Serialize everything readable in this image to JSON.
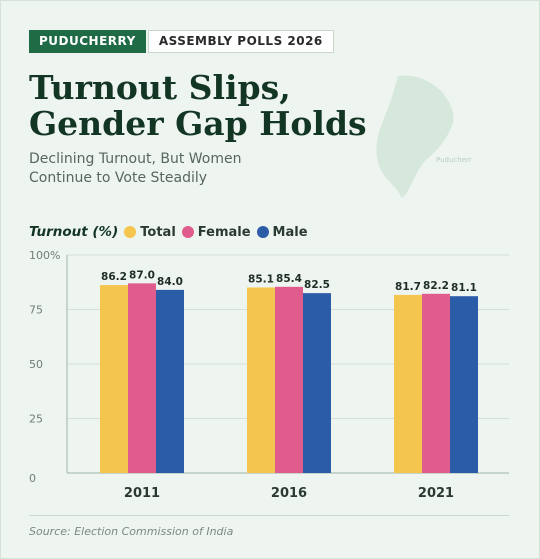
{
  "header": {
    "state_tag": "PUDUCHERRY",
    "event_tag": "ASSEMBLY POLLS 2026",
    "title_line1": "Turnout Slips,",
    "title_line2": "Gender Gap Holds",
    "subtitle": "Declining Turnout, But Women Continue to Vote Steadily"
  },
  "map_label": "Puducherr",
  "legend": {
    "title": "Turnout (%)",
    "items": [
      {
        "label": "Total",
        "color": "#f5c64e"
      },
      {
        "label": "Female",
        "color": "#e05c8c"
      },
      {
        "label": "Male",
        "color": "#2b5ca8"
      }
    ]
  },
  "chart_data": {
    "type": "bar",
    "categories": [
      "2011",
      "2016",
      "2021"
    ],
    "series": [
      {
        "name": "Total",
        "color": "#f5c64e",
        "values": [
          86.2,
          85.1,
          81.7
        ]
      },
      {
        "name": "Female",
        "color": "#e05c8c",
        "values": [
          87.0,
          85.4,
          82.2
        ]
      },
      {
        "name": "Male",
        "color": "#2b5ca8",
        "values": [
          84.0,
          82.5,
          81.1
        ]
      }
    ],
    "y_ticks": [
      "100%",
      "75",
      "50",
      "25",
      "0"
    ],
    "ylim": [
      0,
      100
    ],
    "grid": true
  },
  "source": "Source: Election Commission of India"
}
